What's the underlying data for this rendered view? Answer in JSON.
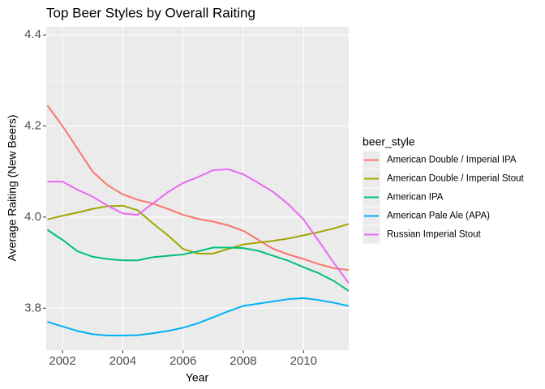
{
  "chart_data": {
    "type": "line",
    "title": "Top Beer Styles by Overall Raiting",
    "x_label": "Year",
    "y_label": "Average Raiting (New Beers)",
    "legend_title": "beer_style",
    "legend_position": "right",
    "grid": true,
    "x": [
      2001.5,
      2002,
      2002.5,
      2003,
      2003.5,
      2004,
      2004.5,
      2005,
      2005.5,
      2006,
      2006.5,
      2007,
      2007.5,
      2008,
      2008.5,
      2009,
      2009.5,
      2010,
      2010.5,
      2011,
      2011.5
    ],
    "series": [
      {
        "name": "American Double / Imperial IPA",
        "color": "#f8766d",
        "values": [
          4.245,
          4.2,
          4.15,
          4.1,
          4.07,
          4.05,
          4.038,
          4.03,
          4.018,
          4.005,
          3.996,
          3.99,
          3.982,
          3.97,
          3.95,
          3.93,
          3.918,
          3.908,
          3.897,
          3.888,
          3.884
        ]
      },
      {
        "name": "American Double / Imperial Stout",
        "color": "#a3a500",
        "values": [
          3.995,
          4.003,
          4.01,
          4.018,
          4.024,
          4.025,
          4.015,
          3.986,
          3.96,
          3.93,
          3.92,
          3.92,
          3.93,
          3.94,
          3.944,
          3.948,
          3.953,
          3.96,
          3.967,
          3.975,
          3.985
        ]
      },
      {
        "name": "American IPA",
        "color": "#00bf7d",
        "values": [
          3.972,
          3.95,
          3.925,
          3.913,
          3.908,
          3.905,
          3.905,
          3.912,
          3.915,
          3.918,
          3.925,
          3.933,
          3.933,
          3.932,
          3.926,
          3.915,
          3.904,
          3.89,
          3.877,
          3.86,
          3.838
        ]
      },
      {
        "name": "American Pale Ale (APA)",
        "color": "#00b0f6",
        "values": [
          3.77,
          3.76,
          3.75,
          3.743,
          3.74,
          3.74,
          3.741,
          3.745,
          3.75,
          3.757,
          3.767,
          3.78,
          3.793,
          3.805,
          3.81,
          3.815,
          3.82,
          3.822,
          3.818,
          3.812,
          3.805
        ]
      },
      {
        "name": "Russian Imperial Stout",
        "color": "#e76bf3",
        "values": [
          4.078,
          4.078,
          4.06,
          4.045,
          4.025,
          4.008,
          4.005,
          4.03,
          4.055,
          4.075,
          4.088,
          4.103,
          4.105,
          4.094,
          4.075,
          4.055,
          4.028,
          3.995,
          3.948,
          3.9,
          3.855
        ]
      }
    ],
    "xlim": [
      2001.46,
      2011.5
    ],
    "xticks": [
      2002,
      2004,
      2006,
      2008,
      2010
    ],
    "ylim": [
      3.708,
      4.418
    ],
    "yticks": [
      3.8,
      {
        "value": 4,
        "label": "4.0"
      },
      4.2,
      4.4
    ]
  }
}
